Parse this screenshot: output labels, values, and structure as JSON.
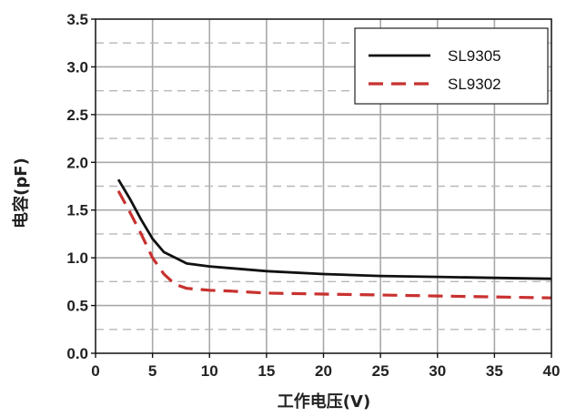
{
  "chart_data": {
    "type": "line",
    "xlabel": "工作电压(V)",
    "ylabel": "电容(pF)",
    "xlim": [
      0,
      40
    ],
    "ylim": [
      0,
      3.5
    ],
    "xticks": [
      "0",
      "5",
      "10",
      "15",
      "20",
      "25",
      "30",
      "35",
      "40"
    ],
    "yticks": [
      "0.0",
      "0.5",
      "1.0",
      "1.5",
      "2.0",
      "2.5",
      "3.0",
      "3.5"
    ],
    "grid": {
      "major": "solid",
      "minor": "dashed"
    },
    "legend_position": "top-right",
    "series": [
      {
        "name": "SL9305",
        "color": "#111111",
        "style": "solid",
        "x": [
          2,
          3,
          4,
          5,
          6,
          7,
          8,
          10,
          12,
          15,
          20,
          25,
          30,
          35,
          40
        ],
        "y": [
          1.82,
          1.62,
          1.4,
          1.2,
          1.06,
          1.0,
          0.94,
          0.91,
          0.89,
          0.86,
          0.83,
          0.81,
          0.8,
          0.79,
          0.78
        ]
      },
      {
        "name": "SL9302",
        "color": "#c8312f",
        "style": "dashed",
        "x": [
          2,
          3,
          4,
          5,
          6,
          7,
          8,
          10,
          12,
          15,
          20,
          25,
          30,
          35,
          40
        ],
        "y": [
          1.7,
          1.48,
          1.25,
          1.0,
          0.83,
          0.72,
          0.68,
          0.66,
          0.65,
          0.63,
          0.62,
          0.61,
          0.6,
          0.59,
          0.58
        ]
      }
    ]
  }
}
